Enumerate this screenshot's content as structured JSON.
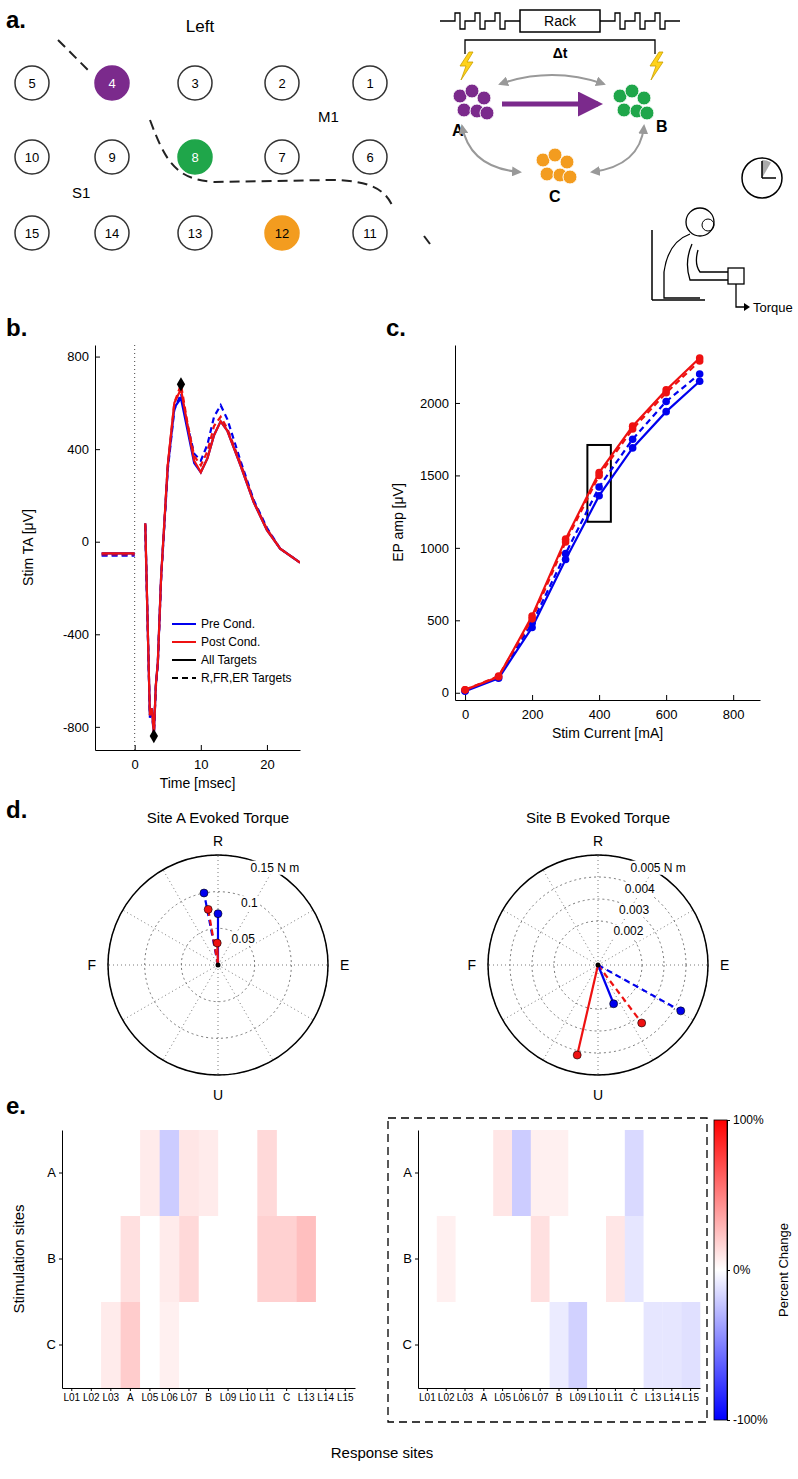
{
  "panel_labels": [
    "a.",
    "b.",
    "c.",
    "d.",
    "e."
  ],
  "diagram": {
    "hemisphere": "Left",
    "area_labels": [
      "M1",
      "S1"
    ],
    "electrodes": [
      [
        "5",
        "4",
        "3",
        "2",
        "1"
      ],
      [
        "10",
        "9",
        "8",
        "7",
        "6"
      ],
      [
        "15",
        "14",
        "13",
        "12",
        "11"
      ]
    ],
    "highlight_colors": {
      "4": "#7b2a8c",
      "8": "#1fa64a",
      "12": "#f39c1f"
    },
    "rack": "Rack",
    "delay": "Δt",
    "clusters": [
      {
        "label": "A",
        "color": "#7b2a8c"
      },
      {
        "label": "B",
        "color": "#1fa64a"
      },
      {
        "label": "C",
        "color": "#f39c1f"
      }
    ],
    "output": "Torque"
  },
  "chart_data": [
    {
      "type": "line",
      "xlabel": "Time [msec]",
      "ylabel": "Stim TA [μV]",
      "xlim": [
        -6,
        25
      ],
      "xticks": [
        0,
        10,
        20
      ],
      "ylim": [
        -900,
        850
      ],
      "yticks": [
        -800,
        -400,
        0,
        400,
        800
      ],
      "vline": 0,
      "x": [
        -5,
        -2,
        0,
        1,
        1.6,
        2.0,
        2.3,
        2.6,
        2.9,
        3.2,
        3.5,
        4,
        5,
        6,
        7,
        8,
        9,
        10,
        11,
        12,
        13,
        14,
        16,
        18,
        20,
        22,
        25
      ],
      "series": [
        {
          "color": "#0000ee",
          "line_style": "dashed",
          "values": [
            -60,
            -60,
            -60,
            null,
            70,
            -410,
            -760,
            -730,
            -840,
            -630,
            -530,
            -160,
            310,
            570,
            640,
            500,
            380,
            350,
            420,
            540,
            590,
            530,
            350,
            180,
            60,
            -30,
            -90
          ]
        },
        {
          "color": "#ee1111",
          "line_style": "dashed",
          "values": [
            -55,
            -55,
            -55,
            null,
            75,
            -400,
            -750,
            -720,
            -835,
            -625,
            -525,
            -155,
            330,
            600,
            680,
            510,
            370,
            330,
            390,
            500,
            540,
            490,
            340,
            175,
            55,
            -30,
            -90
          ]
        },
        {
          "color": "#0000ee",
          "line_style": "solid",
          "values": [
            -50,
            -50,
            -50,
            null,
            80,
            -400,
            -750,
            -720,
            -830,
            -620,
            -520,
            -150,
            320,
            580,
            620,
            480,
            340,
            300,
            360,
            460,
            520,
            480,
            330,
            170,
            50,
            -30,
            -90
          ]
        },
        {
          "color": "#ee1111",
          "line_style": "solid",
          "values": [
            -50,
            -50,
            -50,
            null,
            80,
            -400,
            -750,
            -720,
            -830,
            -620,
            -520,
            -150,
            330,
            600,
            660,
            500,
            350,
            300,
            360,
            460,
            520,
            480,
            330,
            170,
            50,
            -30,
            -90
          ]
        }
      ],
      "markers": {
        "marker": "diamond",
        "color": "#000000",
        "x": [
          7,
          2.9
        ],
        "values": [
          680,
          -840
        ]
      },
      "legend": "lower right",
      "legend_items": [
        {
          "label": "Pre Cond.",
          "color": "#0000ee",
          "line_style": "solid"
        },
        {
          "label": "Post Cond.",
          "color": "#ee1111",
          "line_style": "solid"
        },
        {
          "label": "All Targets",
          "color": "#000000",
          "line_style": "solid"
        },
        {
          "label": "R,FR,ER Targets",
          "color": "#000000",
          "line_style": "dashed"
        }
      ]
    },
    {
      "type": "line",
      "xlabel": "Stim Current [mA]",
      "ylabel": "EP amp [μV]",
      "xlim": [
        -30,
        880
      ],
      "xticks": [
        0,
        200,
        400,
        600,
        800
      ],
      "ylim": [
        -50,
        2400
      ],
      "yticks": [
        0,
        500,
        1000,
        1500,
        2000
      ],
      "x": [
        0,
        100,
        200,
        300,
        400,
        500,
        600,
        700
      ],
      "series": [
        {
          "color": "#0000ee",
          "line_style": "solid",
          "marker": "circle",
          "values": [
            10,
            100,
            450,
            920,
            1360,
            1690,
            1940,
            2150
          ]
        },
        {
          "color": "#0000ee",
          "line_style": "dashed",
          "marker": "circle",
          "values": [
            15,
            110,
            480,
            960,
            1420,
            1750,
            2010,
            2200
          ]
        },
        {
          "color": "#ee1111",
          "line_style": "solid",
          "marker": "circle",
          "values": [
            20,
            110,
            530,
            1060,
            1520,
            1840,
            2090,
            2310
          ]
        },
        {
          "color": "#ee1111",
          "line_style": "dashed",
          "marker": "circle",
          "values": [
            20,
            115,
            510,
            1040,
            1500,
            1820,
            2070,
            2290
          ]
        }
      ],
      "highlight": {
        "x": [
          365,
          435
        ],
        "y": [
          1180,
          1710
        ]
      }
    },
    {
      "type": "polar",
      "title": "Site A Evoked Torque",
      "rlim": [
        0,
        0.15
      ],
      "rticks": [
        0.05,
        0.1,
        {
          "value": 0.15,
          "label": "0.15 N m"
        }
      ],
      "angle_labels": [
        {
          "angle": 90,
          "label": "R"
        },
        {
          "angle": 0,
          "label": "E"
        },
        {
          "angle": 270,
          "label": "U"
        },
        {
          "angle": 180,
          "label": "F"
        }
      ],
      "series": [
        {
          "color": "#0000ee",
          "line_style": "dashed",
          "angle": 101,
          "magnitude": 0.1
        },
        {
          "color": "#ee1111",
          "line_style": "dashed",
          "angle": 100,
          "magnitude": 0.077
        },
        {
          "color": "#0000ee",
          "line_style": "solid",
          "angle": 90,
          "magnitude": 0.07
        },
        {
          "color": "#ee1111",
          "line_style": "solid",
          "angle": 92,
          "magnitude": 0.03
        }
      ]
    },
    {
      "type": "polar",
      "title": "Site B Evoked Torque",
      "rlim": [
        0,
        0.005
      ],
      "rticks": [
        0.002,
        0.003,
        0.004,
        {
          "value": 0.005,
          "label": "0.005 N m"
        }
      ],
      "angle_labels": [
        {
          "angle": 90,
          "label": "R"
        },
        {
          "angle": 0,
          "label": "E"
        },
        {
          "angle": 270,
          "label": "U"
        },
        {
          "angle": 180,
          "label": "F"
        }
      ],
      "series": [
        {
          "color": "#0000ee",
          "line_style": "dashed",
          "angle": 331,
          "magnitude": 0.0043
        },
        {
          "color": "#ee1111",
          "line_style": "dashed",
          "angle": 307,
          "magnitude": 0.0033
        },
        {
          "color": "#0000ee",
          "line_style": "solid",
          "angle": 292,
          "magnitude": 0.0019
        },
        {
          "color": "#ee1111",
          "line_style": "solid",
          "angle": 257,
          "magnitude": 0.0042
        }
      ]
    },
    {
      "type": "heatmap",
      "xlabel": "Response sites",
      "ylabel": "Stimulation sites",
      "xcategories": [
        "L01",
        "L02",
        "L03",
        "A",
        "L05",
        "L06",
        "L07",
        "B",
        "L09",
        "L10",
        "L11",
        "C",
        "L13",
        "L14",
        "L15"
      ],
      "ycategories": [
        "A",
        "B",
        "C"
      ],
      "cells": [
        [
          0,
          0,
          0,
          0,
          8,
          -20,
          10,
          8,
          0,
          0,
          15,
          0,
          0,
          0,
          0
        ],
        [
          0,
          0,
          0,
          12,
          0,
          8,
          15,
          0,
          0,
          0,
          18,
          18,
          25,
          0,
          0
        ],
        [
          0,
          0,
          8,
          20,
          0,
          6,
          0,
          0,
          0,
          0,
          0,
          0,
          0,
          0,
          0
        ]
      ]
    },
    {
      "type": "heatmap",
      "xcategories": [
        "L01",
        "L02",
        "L03",
        "A",
        "L05",
        "L06",
        "L07",
        "B",
        "L09",
        "L10",
        "L11",
        "C",
        "L13",
        "L14",
        "L15"
      ],
      "ycategories": [
        "A",
        "B",
        "C"
      ],
      "cells": [
        [
          0,
          0,
          0,
          0,
          10,
          -20,
          6,
          6,
          0,
          0,
          0,
          -15,
          0,
          0,
          0
        ],
        [
          0,
          6,
          0,
          0,
          0,
          0,
          12,
          0,
          0,
          0,
          10,
          -10,
          0,
          0,
          0
        ],
        [
          0,
          0,
          0,
          0,
          0,
          0,
          0,
          -8,
          -18,
          0,
          0,
          0,
          -10,
          -10,
          -12
        ]
      ],
      "colorbar": {
        "title": "Percent Change",
        "range": [
          -100,
          100
        ],
        "colors": [
          "#0000ff",
          "#ffffff",
          "#ff0000"
        ],
        "ticks": [
          {
            "value": -100,
            "label": "-100%"
          },
          {
            "value": 0,
            "label": "0%"
          },
          {
            "value": 100,
            "label": "100%"
          }
        ]
      }
    }
  ]
}
